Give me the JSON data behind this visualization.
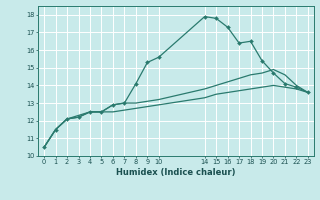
{
  "xlabel": "Humidex (Indice chaleur)",
  "bg_color": "#c8eaea",
  "grid_color": "#ffffff",
  "line_color": "#2a7a6e",
  "xlim": [
    -0.5,
    23.5
  ],
  "ylim": [
    10,
    18.5
  ],
  "xticks": [
    0,
    1,
    2,
    3,
    4,
    5,
    6,
    7,
    8,
    9,
    10,
    14,
    15,
    16,
    17,
    18,
    19,
    20,
    21,
    22,
    23
  ],
  "yticks": [
    10,
    11,
    12,
    13,
    14,
    15,
    16,
    17,
    18
  ],
  "line1_x": [
    0,
    1,
    2,
    3,
    4,
    5,
    6,
    7,
    8,
    9,
    10,
    14,
    15,
    16,
    17,
    18,
    19,
    20,
    21,
    22,
    23
  ],
  "line1_y": [
    10.5,
    11.5,
    12.1,
    12.2,
    12.5,
    12.5,
    12.9,
    13.0,
    14.1,
    15.3,
    15.6,
    17.9,
    17.8,
    17.3,
    16.4,
    16.5,
    15.4,
    14.7,
    14.1,
    13.9,
    13.6
  ],
  "line2_x": [
    0,
    1,
    2,
    3,
    4,
    5,
    6,
    7,
    8,
    9,
    10,
    14,
    15,
    16,
    17,
    18,
    19,
    20,
    21,
    22,
    23
  ],
  "line2_y": [
    10.5,
    11.5,
    12.1,
    12.2,
    12.5,
    12.5,
    12.9,
    13.0,
    13.0,
    13.1,
    13.2,
    13.8,
    14.0,
    14.2,
    14.4,
    14.6,
    14.7,
    14.9,
    14.6,
    14.0,
    13.6
  ],
  "line3_x": [
    0,
    1,
    2,
    3,
    4,
    5,
    6,
    7,
    8,
    9,
    10,
    14,
    15,
    16,
    17,
    18,
    19,
    20,
    21,
    22,
    23
  ],
  "line3_y": [
    10.5,
    11.5,
    12.1,
    12.3,
    12.5,
    12.5,
    12.5,
    12.6,
    12.7,
    12.8,
    12.9,
    13.3,
    13.5,
    13.6,
    13.7,
    13.8,
    13.9,
    14.0,
    13.9,
    13.8,
    13.6
  ]
}
